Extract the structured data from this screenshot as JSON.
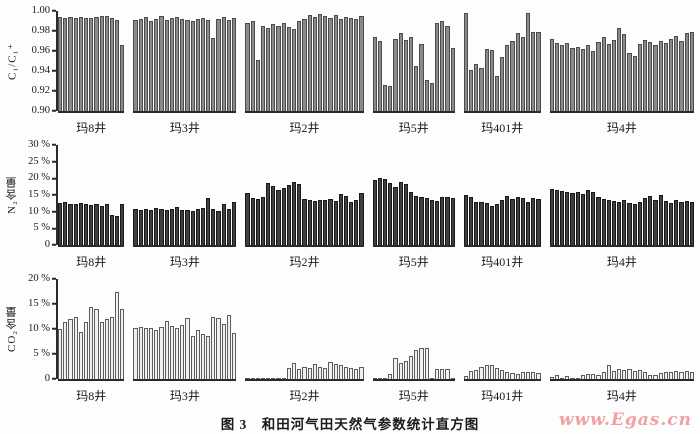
{
  "figure": {
    "caption": "图 3　和田河气田天然气参数统计直方图",
    "watermark": "www.Egas.cn"
  },
  "colors": {
    "axis": "#2a2a2a",
    "text": "#1a1a1a",
    "watermark": "#f2a0a4",
    "panel1_bar_fill": "#8a8a8a",
    "panel1_bar_border": "#4c4c4c",
    "panel2_bar_fill": "#3f3f3f",
    "panel2_bar_border": "#191919",
    "panel3_bar_fill": "#f0f0f0",
    "panel3_bar_border": "#5c5c5c"
  },
  "wells": [
    "玛8井",
    "玛3井",
    "玛2井",
    "玛5井",
    "玛401井",
    "玛4井"
  ],
  "chart_data": [
    {
      "type": "bar",
      "ylabel": "C₁/C₁⁺",
      "ylim": [
        0.9,
        1.0
      ],
      "grid": false,
      "legend": "none",
      "bar_fill": "#8a8a8a",
      "bar_border": "#4c4c4c",
      "yticks": [
        {
          "v": 1.0,
          "label": "1.00"
        },
        {
          "v": 0.98,
          "label": "0.98"
        },
        {
          "v": 0.96,
          "label": "0.96"
        },
        {
          "v": 0.94,
          "label": "0.94"
        },
        {
          "v": 0.92,
          "label": "0.92"
        },
        {
          "v": 0.9,
          "label": "0.90"
        }
      ],
      "groups": [
        {
          "label": "玛8井",
          "values": [
            0.994,
            0.993,
            0.994,
            0.993,
            0.994,
            0.993,
            0.993,
            0.994,
            0.995,
            0.995,
            0.993,
            0.991,
            0.966
          ]
        },
        {
          "label": "玛3井",
          "values": [
            0.991,
            0.992,
            0.994,
            0.99,
            0.992,
            0.995,
            0.991,
            0.993,
            0.994,
            0.992,
            0.991,
            0.99,
            0.992,
            0.993,
            0.991,
            0.973,
            0.992,
            0.994,
            0.991,
            0.993
          ]
        },
        {
          "label": "玛2井",
          "values": [
            0.988,
            0.99,
            0.951,
            0.985,
            0.983,
            0.987,
            0.985,
            0.988,
            0.984,
            0.982,
            0.99,
            0.992,
            0.996,
            0.994,
            0.997,
            0.995,
            0.993,
            0.996,
            0.992,
            0.994,
            0.993,
            0.992,
            0.995
          ]
        },
        {
          "label": "玛5井",
          "values": [
            0.974,
            0.97,
            0.926,
            0.925,
            0.972,
            0.978,
            0.971,
            0.974,
            0.945,
            0.967,
            0.931,
            0.928,
            0.988,
            0.99,
            0.985,
            0.963
          ]
        },
        {
          "label": "玛401井",
          "values": [
            0.998,
            0.941,
            0.947,
            0.943,
            0.962,
            0.961,
            0.935,
            0.954,
            0.966,
            0.97,
            0.978,
            0.974,
            0.998,
            0.979,
            0.979
          ]
        },
        {
          "label": "玛4井",
          "values": [
            0.972,
            0.968,
            0.966,
            0.968,
            0.963,
            0.964,
            0.962,
            0.966,
            0.96,
            0.969,
            0.974,
            0.967,
            0.971,
            0.983,
            0.977,
            0.958,
            0.955,
            0.967,
            0.971,
            0.969,
            0.966,
            0.97,
            0.968,
            0.972,
            0.975,
            0.97,
            0.978,
            0.979
          ]
        }
      ]
    },
    {
      "type": "bar",
      "ylabel": "N₂含量",
      "ylim": [
        0,
        30
      ],
      "grid": false,
      "legend": "none",
      "bar_fill": "#3f3f3f",
      "bar_border": "#191919",
      "yticks": [
        {
          "v": 30,
          "label": "30 %"
        },
        {
          "v": 25,
          "label": "25 %"
        },
        {
          "v": 20,
          "label": "20 %"
        },
        {
          "v": 15,
          "label": "15 %"
        },
        {
          "v": 10,
          "label": "10 %"
        },
        {
          "v": 5,
          "label": "5 %"
        },
        {
          "v": 0,
          "label": "0"
        }
      ],
      "groups": [
        {
          "label": "玛8井",
          "values": [
            12.5,
            12.8,
            12.2,
            12.4,
            12.6,
            12.3,
            12.0,
            12.4,
            11.8,
            12.2,
            9.0,
            8.6,
            12.2
          ]
        },
        {
          "label": "玛3井",
          "values": [
            10.8,
            10.5,
            10.7,
            10.6,
            11.2,
            10.9,
            10.5,
            10.8,
            11.3,
            10.4,
            10.6,
            10.2,
            10.8,
            11.0,
            14.2,
            10.9,
            10.3,
            12.4,
            10.8,
            13.0
          ]
        },
        {
          "label": "玛2井",
          "values": [
            15.5,
            14.0,
            13.8,
            14.5,
            18.5,
            17.8,
            16.5,
            17.2,
            18.0,
            18.8,
            18.4,
            13.8,
            13.5,
            13.2,
            13.6,
            13.4,
            13.8,
            13.2,
            15.2,
            14.8,
            13.0,
            13.4,
            15.5
          ]
        },
        {
          "label": "玛5井",
          "values": [
            19.5,
            20.0,
            19.8,
            18.5,
            17.5,
            18.8,
            18.2,
            16.0,
            14.8,
            14.5,
            14.2,
            13.5,
            13.2,
            14.5,
            14.3,
            14.0
          ]
        },
        {
          "label": "玛401井",
          "values": [
            15.0,
            14.5,
            12.8,
            13.0,
            12.5,
            11.8,
            12.2,
            13.5,
            14.8,
            13.8,
            14.5,
            14.2,
            12.9,
            14.0,
            13.8
          ]
        },
        {
          "label": "玛4井",
          "values": [
            16.8,
            16.5,
            16.2,
            16.0,
            15.5,
            15.8,
            15.2,
            16.4,
            16.0,
            14.5,
            13.8,
            13.5,
            13.2,
            13.0,
            13.4,
            12.5,
            12.2,
            12.8,
            14.2,
            14.8,
            13.6,
            15.0,
            13.2,
            12.6,
            13.4,
            13.0,
            13.2,
            12.8
          ]
        }
      ]
    },
    {
      "type": "bar",
      "ylabel": "CO₂含量",
      "ylim": [
        0,
        20
      ],
      "grid": false,
      "legend": "none",
      "bar_fill": "#f0f0f0",
      "bar_border": "#5c5c5c",
      "yticks": [
        {
          "v": 20,
          "label": "20 %"
        },
        {
          "v": 15,
          "label": "15 %"
        },
        {
          "v": 10,
          "label": "10 %"
        },
        {
          "v": 5,
          "label": "5 %"
        },
        {
          "v": 0,
          "label": "0"
        }
      ],
      "groups": [
        {
          "label": "玛8井",
          "values": [
            10.0,
            11.5,
            12.0,
            12.5,
            9.5,
            11.5,
            14.5,
            14.0,
            11.5,
            12.0,
            12.5,
            17.5,
            14.0
          ]
        },
        {
          "label": "玛3井",
          "values": [
            10.3,
            10.4,
            10.2,
            10.3,
            9.9,
            10.4,
            11.6,
            10.7,
            10.2,
            10.8,
            12.3,
            8.7,
            9.9,
            9.1,
            8.6,
            12.4,
            12.3,
            11.0,
            12.8,
            9.3
          ]
        },
        {
          "label": "玛2井",
          "values": [
            0.1,
            0.2,
            0.1,
            0.2,
            0.3,
            0.3,
            0.2,
            0.2,
            2.3,
            3.3,
            2.1,
            2.5,
            2.2,
            3.0,
            2.4,
            2.3,
            3.4,
            3.0,
            2.8,
            2.5,
            2.2,
            2.1,
            2.4
          ]
        },
        {
          "label": "玛5井",
          "values": [
            0.2,
            0.2,
            0.3,
            1.0,
            4.3,
            3.2,
            3.6,
            4.6,
            5.8,
            6.3,
            6.2,
            0.1,
            2.0,
            2.1,
            2.0,
            0.2
          ]
        },
        {
          "label": "玛401井",
          "values": [
            0.7,
            1.6,
            1.9,
            2.4,
            2.9,
            2.9,
            2.3,
            1.8,
            1.4,
            1.2,
            1.1,
            1.4,
            1.4,
            1.5,
            1.3
          ]
        },
        {
          "label": "玛4井",
          "values": [
            0.5,
            0.8,
            0.3,
            0.6,
            0.3,
            0.2,
            0.8,
            1.0,
            1.1,
            0.9,
            1.4,
            2.8,
            1.6,
            2.1,
            1.8,
            2.0,
            1.7,
            1.9,
            1.5,
            0.9,
            0.8,
            1.2,
            1.4,
            1.5,
            1.6,
            1.5,
            1.6,
            1.5
          ]
        }
      ]
    }
  ]
}
